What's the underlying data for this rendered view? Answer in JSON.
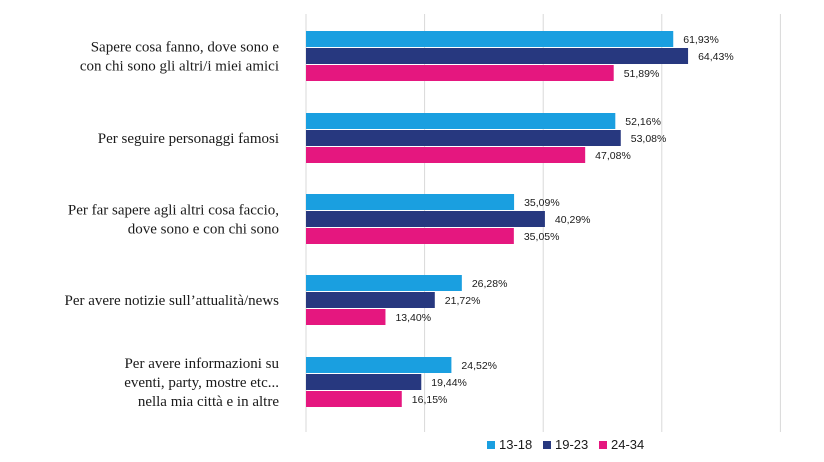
{
  "chart_data": {
    "type": "bar",
    "orientation": "horizontal",
    "categories": [
      [
        "Sapere cosa fanno, dove sono e",
        "con chi sono gli altri/i miei amici"
      ],
      [
        "Per seguire personaggi famosi"
      ],
      [
        "Per far sapere agli altri cosa faccio,",
        "dove sono e con chi sono"
      ],
      [
        "Per avere notizie sull’attualità/news"
      ],
      [
        "Per avere informazioni su",
        "eventi, party, mostre etc...",
        "nella mia città e in altre"
      ]
    ],
    "series": [
      {
        "name": "13-18",
        "color": "#1a9fe0",
        "values": [
          61.93,
          52.16,
          35.09,
          26.28,
          24.52
        ],
        "labels": [
          "61,93%",
          "52,16%",
          "35,09%",
          "26,28%",
          "24,52%"
        ]
      },
      {
        "name": "19-23",
        "color": "#27387f",
        "values": [
          64.43,
          53.08,
          40.29,
          21.72,
          19.44
        ],
        "labels": [
          "64,43%",
          "53,08%",
          "40,29%",
          "21,72%",
          "19,44%"
        ]
      },
      {
        "name": "24-34",
        "color": "#e5177f",
        "values": [
          51.89,
          47.08,
          35.05,
          13.4,
          16.15
        ],
        "labels": [
          "51,89%",
          "47,08%",
          "35,05%",
          "13,40%",
          "16,15%"
        ]
      }
    ],
    "xlim": [
      0,
      80
    ],
    "grid": true,
    "legend_position": "bottom-right"
  }
}
